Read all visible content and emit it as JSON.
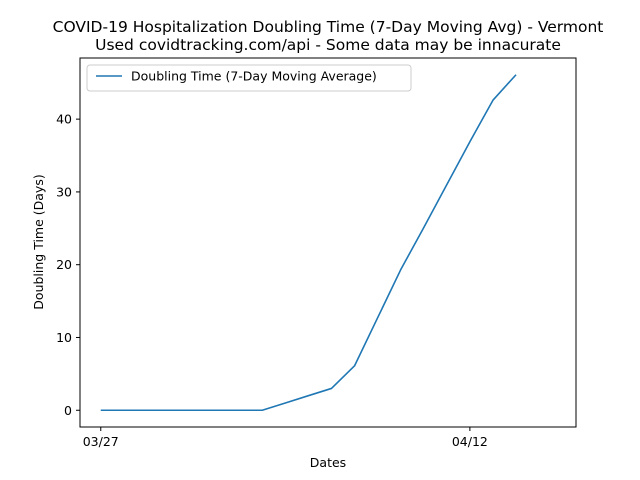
{
  "chart_data": {
    "type": "line",
    "title": "COVID-19 Hospitalization Doubling Time (7-Day Moving Avg) - Vermont",
    "subtitle": "Used covidtracking.com/api - Some data may be innacurate",
    "xlabel": "Dates",
    "ylabel": "Doubling Time (Days)",
    "x_tick_labels": [
      "03/27",
      "04/12"
    ],
    "y_ticks": [
      0,
      10,
      20,
      30,
      40
    ],
    "ylim": [
      -2.3,
      48.4
    ],
    "xlim_days_from_0327": [
      -0.9,
      20.6
    ],
    "grid": false,
    "legend_position": "top-left",
    "series": [
      {
        "name": "Doubling Time (7-Day Moving Average)",
        "color": "#1f77b4",
        "x": [
          "03/27",
          "03/28",
          "03/29",
          "03/30",
          "03/31",
          "04/01",
          "04/02",
          "04/03",
          "04/04",
          "04/05",
          "04/06",
          "04/07",
          "04/08",
          "04/09",
          "04/10",
          "04/11",
          "04/12",
          "04/13",
          "04/14",
          "04/15"
        ],
        "y": [
          0,
          0,
          0,
          0,
          0,
          0,
          0,
          0,
          1.0,
          2.0,
          3.0,
          6.1,
          12.7,
          19.3,
          25.1,
          31.0,
          36.9,
          42.6,
          46.1,
          null
        ]
      }
    ]
  }
}
